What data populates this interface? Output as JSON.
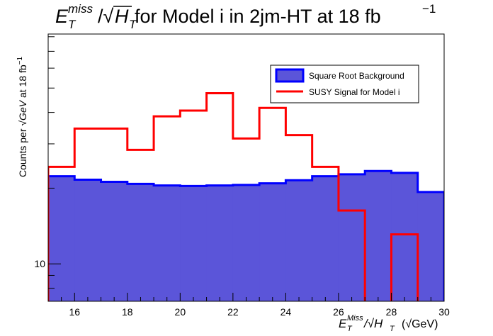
{
  "chart_data": {
    "type": "histogram",
    "title": {
      "main": "E",
      "sup": "miss",
      "sub": "T",
      "slash": "/√",
      "h": "H",
      "hsub": "T",
      "rest": " for Model i in 2jm-HT at 18 fb",
      "exp": "−1"
    },
    "xlabel": {
      "main": "E",
      "sup": "Miss",
      "sub": "T",
      "rest": "/√H",
      "hsub": "T",
      "unit": "(√GeV)"
    },
    "ylabel": {
      "pre": "Counts per ",
      "root": "√GeV",
      "post": " at 18 fb",
      "exp": "−1"
    },
    "x_scale": "linear",
    "y_scale": "log",
    "xlim": [
      15,
      30
    ],
    "ylim": [
      7.1,
      82
    ],
    "x_ticks": [
      "16",
      "18",
      "20",
      "22",
      "24",
      "26",
      "28",
      "30"
    ],
    "y_tick_labels": [
      "10"
    ],
    "bin_edges": [
      15,
      16,
      17,
      18,
      19,
      20,
      21,
      22,
      23,
      24,
      25,
      26,
      27,
      28,
      29,
      30
    ],
    "series": [
      {
        "name": "Square Root Background",
        "style": "filled",
        "fill": "#5b55d9",
        "line": "#0000ff",
        "values": [
          22.3,
          21.6,
          21.2,
          20.8,
          20.5,
          20.4,
          20.5,
          20.6,
          20.9,
          21.5,
          22.3,
          22.7,
          23.4,
          23.0,
          19.3
        ]
      },
      {
        "name": "SUSY Signal for Model i",
        "style": "line",
        "line": "#ff0000",
        "values": [
          24.3,
          34.5,
          34.5,
          28.4,
          38.6,
          40.7,
          47.7,
          31.5,
          41.7,
          32.5,
          24.3,
          16.3,
          0,
          13.1,
          0
        ]
      }
    ],
    "legend": "top-right",
    "grid": false
  }
}
